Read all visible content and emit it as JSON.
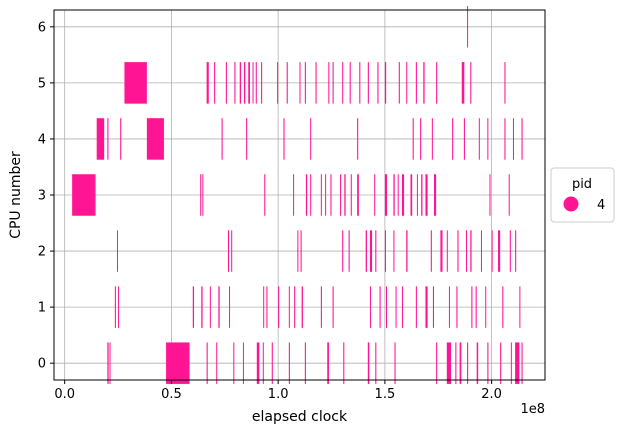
{
  "chart_data": {
    "type": "event_timeline",
    "title": "",
    "xlabel": "elapsed clock",
    "ylabel": "CPU number",
    "x_offset_text": "1e8",
    "xlim": [
      -0.05,
      2.25
    ],
    "ylim": [
      -0.3,
      6.3
    ],
    "x_unit_scale": 100000000.0,
    "x_ticks": [
      0.0,
      0.5,
      1.0,
      1.5,
      2.0
    ],
    "x_tick_labels": [
      "0.0",
      "0.5",
      "1.0",
      "1.5",
      "2.0"
    ],
    "y_ticks": [
      0,
      1,
      2,
      3,
      4,
      5,
      6
    ],
    "y_tick_labels": [
      "0",
      "1",
      "2",
      "3",
      "4",
      "5",
      "6"
    ],
    "grid": true,
    "legend": {
      "title": "pid",
      "placement": "right",
      "entries": [
        {
          "label": "4",
          "color": "#ff1493"
        }
      ]
    },
    "bar_color": "#ff1493",
    "bar_half_height": 0.37,
    "series": [
      {
        "cpu": 0,
        "intervals": [
          [
            0.475,
            0.585
          ],
          [
            0.2,
            0.206
          ],
          [
            0.21,
            0.214
          ],
          [
            0.665,
            0.67
          ],
          [
            0.71,
            0.714
          ],
          [
            0.79,
            0.794
          ],
          [
            0.835,
            0.838
          ],
          [
            0.9,
            0.912
          ],
          [
            0.928,
            0.932
          ],
          [
            0.97,
            0.975
          ],
          [
            1.05,
            1.055
          ],
          [
            1.125,
            1.13
          ],
          [
            1.23,
            1.238
          ],
          [
            1.305,
            1.31
          ],
          [
            1.42,
            1.427
          ],
          [
            1.455,
            1.46
          ],
          [
            1.545,
            1.55
          ],
          [
            1.74,
            1.745
          ],
          [
            1.79,
            1.81
          ],
          [
            1.83,
            1.835
          ],
          [
            1.85,
            1.858
          ],
          [
            1.885,
            1.89
          ],
          [
            1.93,
            1.937
          ],
          [
            1.98,
            1.985
          ],
          [
            2.04,
            2.045
          ],
          [
            2.09,
            2.094
          ],
          [
            2.11,
            2.13
          ],
          [
            2.14,
            2.145
          ]
        ]
      },
      {
        "cpu": 1,
        "intervals": [
          [
            0.235,
            0.24
          ],
          [
            0.25,
            0.254
          ],
          [
            0.6,
            0.606
          ],
          [
            0.64,
            0.646
          ],
          [
            0.68,
            0.684
          ],
          [
            0.72,
            0.726
          ],
          [
            0.77,
            0.774
          ],
          [
            0.93,
            0.934
          ],
          [
            0.945,
            0.95
          ],
          [
            1.0,
            1.005
          ],
          [
            1.05,
            1.054
          ],
          [
            1.075,
            1.08
          ],
          [
            1.11,
            1.116
          ],
          [
            1.2,
            1.205
          ],
          [
            1.255,
            1.26
          ],
          [
            1.43,
            1.434
          ],
          [
            1.475,
            1.48
          ],
          [
            1.505,
            1.51
          ],
          [
            1.55,
            1.553
          ],
          [
            1.58,
            1.583
          ],
          [
            1.645,
            1.65
          ],
          [
            1.69,
            1.7
          ],
          [
            1.725,
            1.73
          ],
          [
            1.8,
            1.804
          ],
          [
            1.835,
            1.84
          ],
          [
            1.905,
            1.91
          ],
          [
            1.925,
            1.93
          ],
          [
            1.97,
            1.974
          ],
          [
            2.05,
            2.055
          ],
          [
            2.13,
            2.134
          ]
        ]
      },
      {
        "cpu": 2,
        "intervals": [
          [
            0.245,
            0.249
          ],
          [
            0.765,
            0.77
          ],
          [
            0.78,
            0.784
          ],
          [
            1.09,
            1.094
          ],
          [
            1.105,
            1.11
          ],
          [
            1.3,
            1.305
          ],
          [
            1.33,
            1.335
          ],
          [
            1.41,
            1.416
          ],
          [
            1.43,
            1.44
          ],
          [
            1.455,
            1.46
          ],
          [
            1.5,
            1.505
          ],
          [
            1.54,
            1.543
          ],
          [
            1.6,
            1.606
          ],
          [
            1.715,
            1.72
          ],
          [
            1.76,
            1.77
          ],
          [
            1.79,
            1.794
          ],
          [
            1.84,
            1.845
          ],
          [
            1.88,
            1.884
          ],
          [
            1.9,
            1.906
          ],
          [
            1.95,
            1.954
          ],
          [
            2.0,
            2.004
          ],
          [
            2.03,
            2.04
          ],
          [
            2.085,
            2.09
          ],
          [
            2.11,
            2.115
          ]
        ]
      },
      {
        "cpu": 3,
        "intervals": [
          [
            0.035,
            0.14
          ],
          [
            0.14,
            0.144
          ],
          [
            0.635,
            0.64
          ],
          [
            0.645,
            0.648
          ],
          [
            0.935,
            0.94
          ],
          [
            1.07,
            1.074
          ],
          [
            1.13,
            1.136
          ],
          [
            1.15,
            1.153
          ],
          [
            1.2,
            1.204
          ],
          [
            1.22,
            1.224
          ],
          [
            1.245,
            1.25
          ],
          [
            1.29,
            1.295
          ],
          [
            1.31,
            1.316
          ],
          [
            1.34,
            1.345
          ],
          [
            1.37,
            1.378
          ],
          [
            1.45,
            1.454
          ],
          [
            1.5,
            1.51
          ],
          [
            1.54,
            1.546
          ],
          [
            1.56,
            1.564
          ],
          [
            1.58,
            1.59
          ],
          [
            1.62,
            1.628
          ],
          [
            1.65,
            1.654
          ],
          [
            1.67,
            1.676
          ],
          [
            1.69,
            1.7
          ],
          [
            1.73,
            1.74
          ],
          [
            1.99,
            1.994
          ],
          [
            2.08,
            2.084
          ]
        ]
      },
      {
        "cpu": 4,
        "intervals": [
          [
            0.15,
            0.185
          ],
          [
            0.2,
            0.205
          ],
          [
            0.26,
            0.265
          ],
          [
            0.385,
            0.465
          ],
          [
            0.735,
            0.74
          ],
          [
            0.85,
            0.855
          ],
          [
            1.025,
            1.03
          ],
          [
            1.15,
            1.154
          ],
          [
            1.37,
            1.375
          ],
          [
            1.63,
            1.635
          ],
          [
            1.665,
            1.67
          ],
          [
            1.72,
            1.724
          ],
          [
            1.815,
            1.82
          ],
          [
            1.87,
            1.875
          ],
          [
            1.94,
            1.944
          ],
          [
            1.98,
            1.984
          ],
          [
            2.06,
            2.065
          ],
          [
            2.1,
            2.104
          ],
          [
            2.14,
            2.145
          ]
        ]
      },
      {
        "cpu": 5,
        "intervals": [
          [
            0.28,
            0.385
          ],
          [
            0.665,
            0.675
          ],
          [
            0.7,
            0.705
          ],
          [
            0.755,
            0.76
          ],
          [
            0.795,
            0.8
          ],
          [
            0.82,
            0.826
          ],
          [
            0.84,
            0.846
          ],
          [
            0.86,
            0.868
          ],
          [
            0.88,
            0.884
          ],
          [
            0.895,
            0.9
          ],
          [
            0.92,
            0.925
          ],
          [
            0.995,
            1.0
          ],
          [
            1.04,
            1.045
          ],
          [
            1.1,
            1.104
          ],
          [
            1.125,
            1.13
          ],
          [
            1.175,
            1.18
          ],
          [
            1.235,
            1.238
          ],
          [
            1.255,
            1.26
          ],
          [
            1.3,
            1.304
          ],
          [
            1.335,
            1.34
          ],
          [
            1.38,
            1.385
          ],
          [
            1.42,
            1.425
          ],
          [
            1.465,
            1.47
          ],
          [
            1.5,
            1.506
          ],
          [
            1.565,
            1.57
          ],
          [
            1.6,
            1.604
          ],
          [
            1.645,
            1.65
          ],
          [
            1.68,
            1.686
          ],
          [
            1.74,
            1.745
          ],
          [
            1.86,
            1.872
          ],
          [
            1.9,
            1.905
          ],
          [
            2.06,
            2.065
          ]
        ]
      },
      {
        "cpu": 6,
        "intervals": [
          [
            1.885,
            1.889
          ]
        ]
      }
    ]
  }
}
